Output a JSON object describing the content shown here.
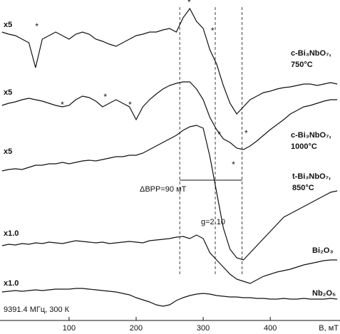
{
  "chart_data": {
    "type": "line",
    "x_label": "B, мТ",
    "xlim": [
      -3,
      504
    ],
    "ylim": [
      0,
      450
    ],
    "xticks": [
      100,
      200,
      300,
      400
    ],
    "x": [
      0,
      10,
      20,
      30,
      40,
      50,
      60,
      70,
      80,
      90,
      100,
      110,
      120,
      130,
      140,
      150,
      160,
      170,
      180,
      190,
      200,
      210,
      220,
      230,
      240,
      250,
      260,
      270,
      280,
      290,
      300,
      310,
      320,
      330,
      340,
      350,
      360,
      370,
      380,
      390,
      400,
      410,
      420,
      430,
      440,
      450,
      460,
      470,
      480,
      490,
      500
    ],
    "series": [
      {
        "name": "c-Bi₃NbO₇, 750°C",
        "gain": "x5",
        "color": "#111111",
        "values": [
          405,
          402,
          400,
          395,
          390,
          355,
          395,
          400,
          405,
          400,
          395,
          402,
          405,
          402,
          395,
          392,
          388,
          385,
          390,
          395,
          400,
          402,
          405,
          405,
          408,
          410,
          405,
          425,
          438,
          420,
          410,
          380,
          360,
          330,
          305,
          290,
          300,
          310,
          315,
          320,
          322,
          325,
          327,
          328,
          330,
          332,
          332,
          330,
          332,
          334,
          332
        ]
      },
      {
        "name": "c-Bi₃NbO₇, 1000°C",
        "gain": "x5",
        "color": "#111111",
        "values": [
          302,
          305,
          307,
          310,
          312,
          310,
          308,
          305,
          302,
          300,
          302,
          310,
          315,
          313,
          308,
          300,
          305,
          310,
          305,
          300,
          282,
          300,
          310,
          318,
          325,
          330,
          333,
          335,
          335,
          325,
          310,
          285,
          268,
          255,
          250,
          242,
          240,
          245,
          252,
          260,
          268,
          275,
          282,
          290,
          295,
          300,
          302,
          305,
          308,
          310,
          310
        ]
      },
      {
        "name": "t-Bi₃NbO₇, 850°C",
        "gain": "x5",
        "color": "#111111",
        "values": [
          210,
          212,
          213,
          212,
          215,
          218,
          218,
          220,
          220,
          222,
          220,
          222,
          224,
          225,
          224,
          226,
          228,
          230,
          230,
          232,
          232,
          235,
          240,
          245,
          250,
          255,
          260,
          267,
          272,
          274,
          270,
          230,
          180,
          130,
          100,
          88,
          85,
          95,
          105,
          115,
          125,
          135,
          145,
          150,
          155,
          160,
          165,
          170,
          175,
          180,
          182
        ]
      },
      {
        "name": "Bi₂O₃",
        "gain": "x1.0",
        "color": "#111111",
        "values": [
          105,
          107,
          106,
          108,
          107,
          109,
          108,
          110,
          109,
          108,
          110,
          112,
          111,
          110,
          109,
          110,
          108,
          109,
          110,
          111,
          110,
          109,
          112,
          113,
          114,
          115,
          117,
          118,
          115,
          120,
          115,
          95,
          85,
          75,
          65,
          58,
          55,
          52,
          57,
          62,
          65,
          68,
          70,
          72,
          75,
          78,
          80,
          82,
          84,
          85,
          85
        ]
      },
      {
        "name": "Nb₂O₅",
        "gain": "x1.0",
        "color": "#111111",
        "values": [
          40,
          41,
          42,
          41,
          42,
          43,
          42,
          43,
          44,
          44,
          44,
          45,
          45,
          44,
          43,
          42,
          41,
          40,
          38,
          36,
          32,
          29,
          26,
          22,
          20,
          22,
          28,
          32,
          35,
          37,
          38,
          37,
          35,
          34,
          33,
          33,
          32,
          32,
          31,
          31,
          30,
          30,
          31,
          30,
          30,
          31,
          30,
          30,
          30,
          31,
          30
        ]
      }
    ],
    "vlines": [
      265,
      318,
      358
    ],
    "bracket": {
      "text": "ΔBPP=90 мТ",
      "x": [
        265,
        358
      ],
      "y": 197
    },
    "g_label": "g=2.10",
    "conditions": "9391.4 МГц, 300 К",
    "stars": [
      {
        "text": "*",
        "x": 52,
        "y": 412
      },
      {
        "text": "*",
        "x": 279,
        "y": 446
      },
      {
        "text": "*",
        "x": 314,
        "y": 406
      },
      {
        "text": "*",
        "x": 90,
        "y": 302
      },
      {
        "text": "*",
        "x": 154,
        "y": 313
      },
      {
        "text": "*",
        "x": 191,
        "y": 302
      },
      {
        "text": "*",
        "x": 324,
        "y": 260
      },
      {
        "text": "*",
        "x": 364,
        "y": 262
      },
      {
        "text": "*",
        "x": 345,
        "y": 218
      }
    ]
  }
}
